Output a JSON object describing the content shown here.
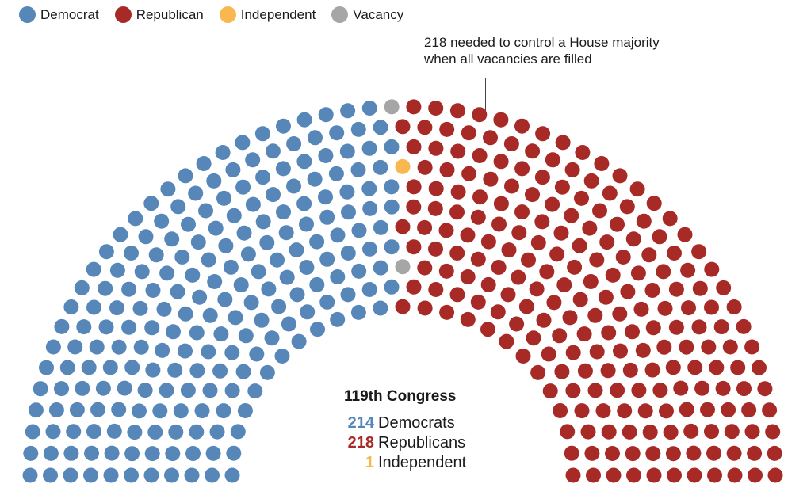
{
  "chart_data": {
    "type": "parliament",
    "title": "119th Congress",
    "legend": [
      {
        "label": "Democrat",
        "color": "#5687b8"
      },
      {
        "label": "Republican",
        "color": "#a82a26"
      },
      {
        "label": "Independent",
        "color": "#f8b74f"
      },
      {
        "label": "Vacancy",
        "color": "#a6a6a6"
      }
    ],
    "seats": [
      {
        "party": "Democrat",
        "count": 214,
        "color": "#5687b8"
      },
      {
        "party": "Vacancy",
        "count": 2,
        "color": "#a6a6a6"
      },
      {
        "party": "Independent",
        "count": 1,
        "color": "#f8b74f"
      },
      {
        "party": "Republican",
        "count": 218,
        "color": "#a82a26"
      }
    ],
    "total_seats": 435,
    "annotation": "218 needed to control a House majority when all vacancies are filled"
  },
  "legend": {
    "democrat": "Democrat",
    "republican": "Republican",
    "independent": "Independent",
    "vacancy": "Vacancy"
  },
  "annotation": {
    "line1": "218 needed to control a House majority",
    "line2": "when all vacancies are filled"
  },
  "summary": {
    "title": "119th Congress",
    "rows": [
      {
        "count": "214",
        "label": "Democrats",
        "color": "#5687b8"
      },
      {
        "count": "218",
        "label": "Republicans",
        "color": "#a82a26"
      },
      {
        "count": "1",
        "label": "Independent",
        "color": "#f8b74f"
      }
    ]
  }
}
